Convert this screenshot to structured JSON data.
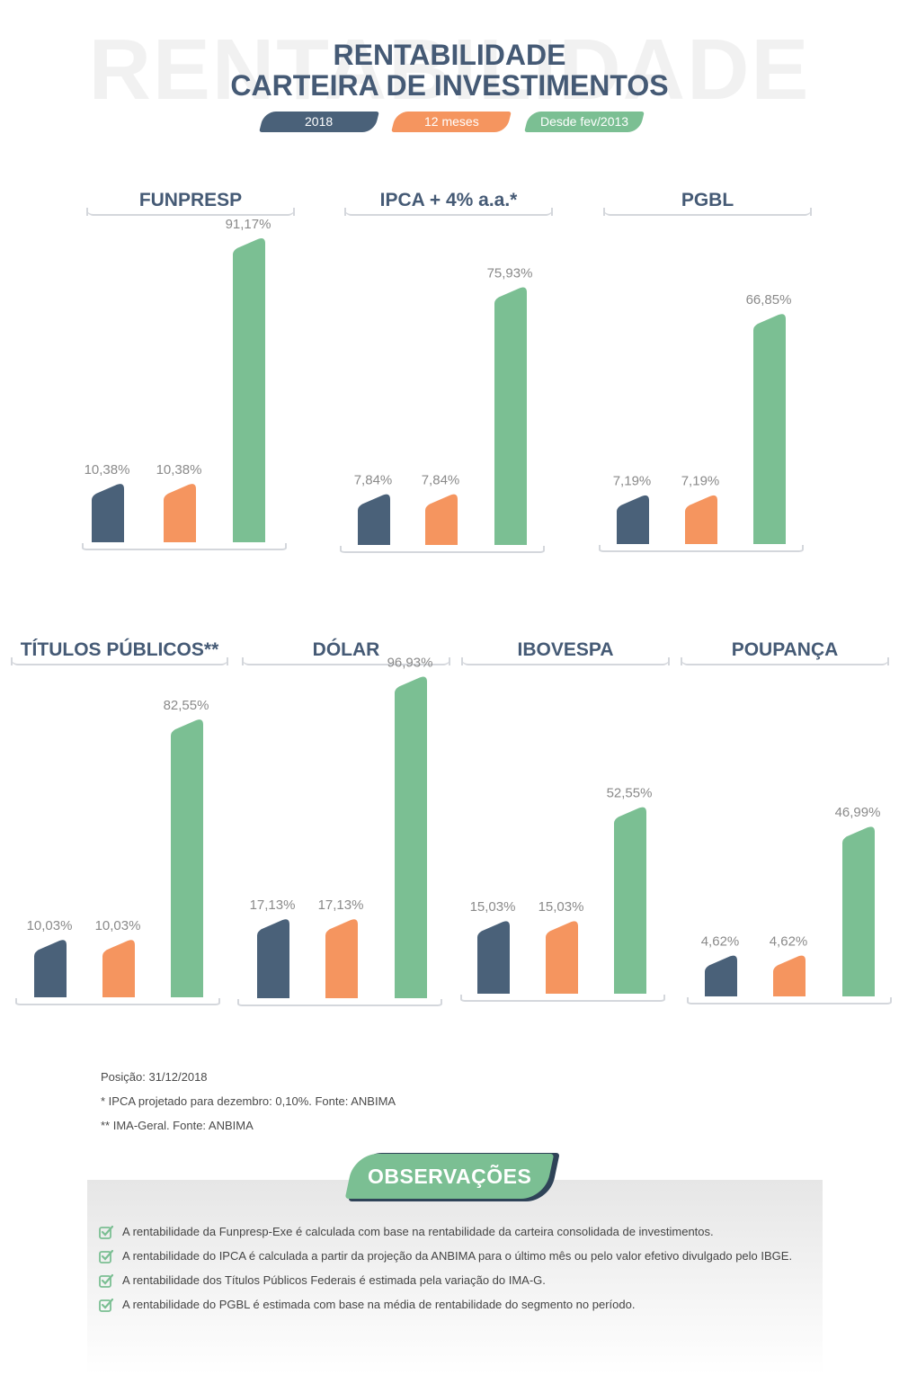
{
  "watermark": "RENTABILIDADE",
  "title": {
    "line1": "RENTABILIDADE",
    "line2": "CARTEIRA DE INVESTIMENTOS"
  },
  "legend": [
    {
      "label": "2018",
      "color": "#4a6179"
    },
    {
      "label": "12 meses",
      "color": "#f5955f"
    },
    {
      "label": "Desde fev/2013",
      "color": "#7bbf93"
    }
  ],
  "chart_data": [
    {
      "type": "bar",
      "title": "FUNPRESP",
      "categories": [
        "2018",
        "12 meses",
        "Desde fev/2013"
      ],
      "values": [
        10.38,
        10.38,
        91.17
      ],
      "labels": [
        "10,38%",
        "10,38%",
        "91,17%"
      ]
    },
    {
      "type": "bar",
      "title": "IPCA + 4% a.a.*",
      "categories": [
        "2018",
        "12 meses",
        "Desde fev/2013"
      ],
      "values": [
        7.84,
        7.84,
        75.93
      ],
      "labels": [
        "7,84%",
        "7,84%",
        "75,93%"
      ]
    },
    {
      "type": "bar",
      "title": "PGBL",
      "categories": [
        "2018",
        "12 meses",
        "Desde fev/2013"
      ],
      "values": [
        7.19,
        7.19,
        66.85
      ],
      "labels": [
        "7,19%",
        "7,19%",
        "66,85%"
      ]
    },
    {
      "type": "bar",
      "title": "TÍTULOS PÚBLICOS**",
      "categories": [
        "2018",
        "12 meses",
        "Desde fev/2013"
      ],
      "values": [
        10.03,
        10.03,
        82.55
      ],
      "labels": [
        "10,03%",
        "10,03%",
        "82,55%"
      ]
    },
    {
      "type": "bar",
      "title": "DÓLAR",
      "categories": [
        "2018",
        "12 meses",
        "Desde fev/2013"
      ],
      "values": [
        17.13,
        17.13,
        96.93
      ],
      "labels": [
        "17,13%",
        "17,13%",
        "96,93%"
      ]
    },
    {
      "type": "bar",
      "title": "IBOVESPA",
      "categories": [
        "2018",
        "12 meses",
        "Desde fev/2013"
      ],
      "values": [
        15.03,
        15.03,
        52.55
      ],
      "labels": [
        "15,03%",
        "15,03%",
        "52,55%"
      ]
    },
    {
      "type": "bar",
      "title": "POUPANÇA",
      "categories": [
        "2018",
        "12 meses",
        "Desde fev/2013"
      ],
      "values": [
        4.62,
        4.62,
        46.99
      ],
      "labels": [
        "4,62%",
        "4,62%",
        "46,99%"
      ]
    }
  ],
  "notes": [
    "Posição: 31/12/2018",
    "* IPCA projetado para dezembro: 0,10%. Fonte: ANBIMA",
    "** IMA-Geral. Fonte: ANBIMA"
  ],
  "observacoes": {
    "title": "OBSERVAÇÕES",
    "items": [
      "A rentabilidade da Funpresp-Exe é calculada com base na rentabilidade da carteira consolidada de investimentos.",
      "A rentabilidade do IPCA é calculada a partir da projeção da ANBIMA para o último mês ou pelo valor efetivo divulgado pelo IBGE.",
      "A rentabilidade dos Títulos Públicos Federais é estimada pela variação do IMA-G.",
      "A rentabilidade do PGBL é estimada com base na média de rentabilidade do segmento no período."
    ]
  },
  "colors": {
    "title": "#455a75",
    "label": "#8a8a8a",
    "check": "#7bbf93"
  }
}
